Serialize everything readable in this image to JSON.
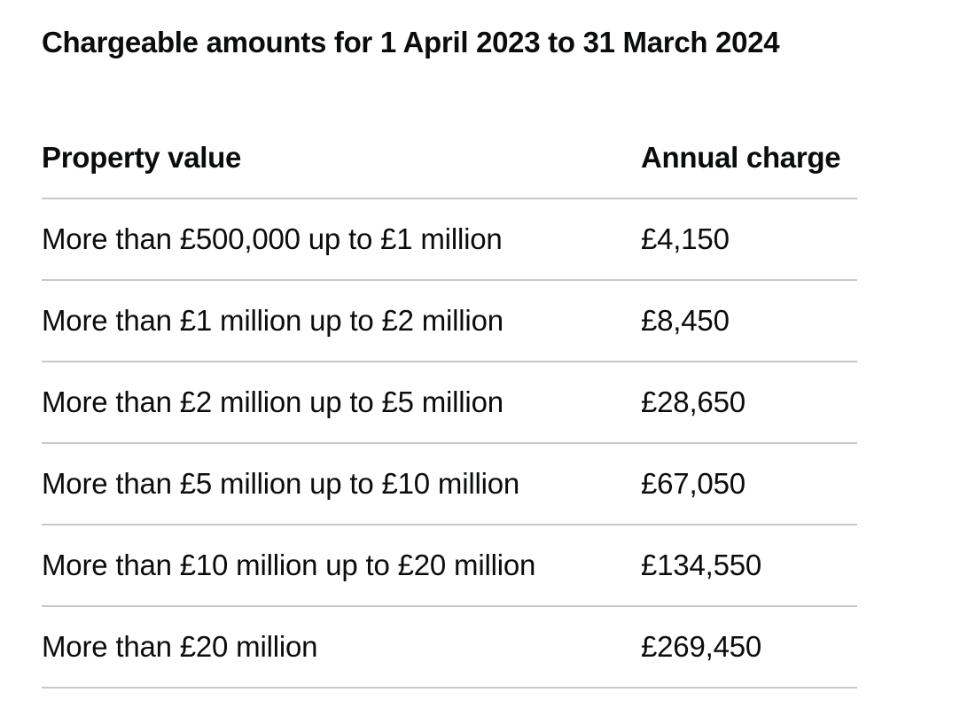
{
  "caption": "Chargeable amounts for 1 April 2023 to 31 March 2024",
  "table": {
    "headers": [
      "Property value",
      "Annual charge"
    ],
    "rows": [
      [
        "More than £500,000 up to £1 million",
        "£4,150"
      ],
      [
        "More than £1 million up to £2 million",
        "£8,450"
      ],
      [
        "More than £2 million up to £5 million",
        "£28,650"
      ],
      [
        "More than £5 million up to £10 million",
        "£67,050"
      ],
      [
        "More than £10 million up to £20 million",
        "£134,550"
      ],
      [
        "More than £20 million",
        "£269,450"
      ]
    ]
  }
}
